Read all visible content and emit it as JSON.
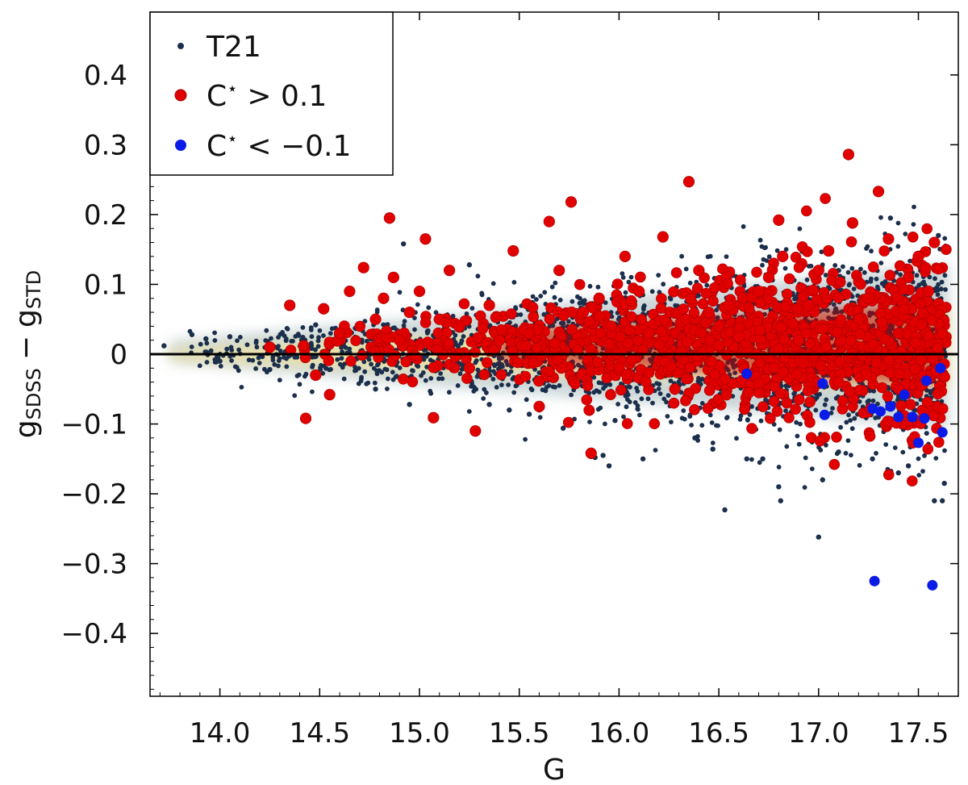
{
  "chart_data": {
    "type": "scatter",
    "title": "",
    "xlabel": "G",
    "ylabel": {
      "base": "g",
      "sub1": "SDSS",
      "minus": "−",
      "sub2": "STD"
    },
    "xlim": [
      13.65,
      17.7
    ],
    "ylim": [
      -0.49,
      0.49
    ],
    "xticks": [
      14.0,
      14.5,
      15.0,
      15.5,
      16.0,
      16.5,
      17.0,
      17.5
    ],
    "xtick_labels": [
      "14.0",
      "14.5",
      "15.0",
      "15.5",
      "16.0",
      "16.5",
      "17.0",
      "17.5"
    ],
    "yticks": [
      0.4,
      0.3,
      0.2,
      0.1,
      0.0,
      -0.1,
      -0.2,
      -0.3,
      -0.4
    ],
    "ytick_labels": [
      "0.4",
      "0.3",
      "0.2",
      "0.1",
      "0",
      "−0.1",
      "−0.2",
      "−0.3",
      "−0.4"
    ],
    "reference_line_y": 0,
    "legend": {
      "placement": "top-left",
      "entries": [
        {
          "key": "t21",
          "label": "T21"
        },
        {
          "key": "cpos",
          "label_prefix": "C",
          "label_sup": "⋆",
          "label_rest": " > 0.1"
        },
        {
          "key": "cneg",
          "label_prefix": "C",
          "label_sup": "⋆",
          "label_rest": " < −0.1"
        }
      ]
    },
    "colors": {
      "t21": "#1b2e4b",
      "density_core": "#efe3a0",
      "density_mid": "#9fb3b7",
      "cpos": "#e00000",
      "cpos_stroke": "#a80000",
      "cneg": "#0a1be8",
      "refline": "#000000"
    },
    "series": [
      {
        "name": "T21",
        "description": "dense band of points around zero, width growing with G",
        "x": [
          13.72,
          13.86,
          13.93,
          14.0,
          14.05,
          14.25,
          14.48,
          14.78,
          14.92,
          14.95,
          15.25,
          15.35,
          15.45,
          15.55,
          15.6,
          15.72,
          15.88,
          15.92,
          15.95,
          15.98,
          16.12,
          16.38,
          16.47,
          16.53,
          16.64,
          16.72,
          16.8,
          16.81,
          17.0,
          17.02,
          17.1,
          17.27,
          17.3,
          17.36,
          17.4,
          17.45,
          17.5,
          17.55,
          17.58,
          17.6,
          17.62,
          17.63
        ],
        "y": [
          0.012,
          0.028,
          0.022,
          -0.01,
          0.025,
          -0.022,
          0.042,
          -0.05,
          0.158,
          -0.072,
          0.128,
          -0.072,
          -0.08,
          -0.086,
          -0.08,
          -0.106,
          -0.148,
          -0.145,
          -0.16,
          -0.095,
          -0.15,
          -0.12,
          -0.136,
          -0.223,
          -0.15,
          -0.15,
          -0.19,
          -0.21,
          -0.262,
          -0.18,
          -0.14,
          -0.15,
          -0.09,
          0.195,
          -0.17,
          -0.16,
          0.13,
          0.15,
          -0.21,
          0.17,
          -0.21,
          -0.185
        ]
      },
      {
        "name": "C* > 0.1",
        "description": "red outliers scattered in the band",
        "x": [
          14.25,
          14.35,
          14.42,
          14.43,
          14.48,
          14.52,
          14.55,
          14.6,
          14.65,
          14.72,
          14.78,
          14.82,
          14.85,
          14.87,
          14.9,
          14.95,
          15.0,
          15.03,
          15.07,
          15.1,
          15.15,
          15.2,
          15.25,
          15.28,
          15.35,
          15.4,
          15.47,
          15.55,
          15.6,
          15.65,
          15.7,
          15.76,
          15.82,
          15.86,
          15.9,
          15.96,
          16.03,
          16.1,
          16.15,
          16.22,
          16.28,
          16.35,
          16.4,
          16.45,
          16.5,
          16.55,
          16.6,
          16.65,
          16.7,
          16.75,
          16.8,
          16.82,
          16.9,
          16.95,
          17.0,
          17.05,
          17.1,
          17.15,
          17.17,
          17.2,
          17.25,
          17.3,
          17.35,
          17.4,
          17.45,
          17.5,
          17.55,
          17.58,
          17.62
        ],
        "y": [
          0.01,
          0.07,
          0.012,
          -0.092,
          -0.03,
          0.065,
          -0.058,
          0.03,
          0.09,
          0.124,
          0.05,
          0.08,
          0.195,
          0.11,
          0.02,
          0.06,
          0.09,
          0.165,
          -0.091,
          0.05,
          0.12,
          0.04,
          -0.02,
          -0.11,
          0.07,
          0.02,
          0.148,
          0.03,
          -0.075,
          0.19,
          0.12,
          0.218,
          0.06,
          -0.142,
          0.08,
          0.04,
          0.14,
          0.09,
          0.03,
          0.168,
          -0.05,
          0.247,
          0.12,
          0.06,
          0.04,
          0.07,
          0.025,
          -0.055,
          0.09,
          0.11,
          0.192,
          0.14,
          0.02,
          0.07,
          0.12,
          0.148,
          -0.04,
          0.286,
          0.188,
          0.05,
          0.08,
          0.233,
          0.165,
          0.03,
          0.11,
          0.14,
          0.09,
          0.16,
          0.03
        ]
      },
      {
        "name": "C* < -0.1",
        "description": "blue outliers at the faint end",
        "x": [
          16.64,
          17.02,
          17.03,
          17.27,
          17.28,
          17.31,
          17.36,
          17.4,
          17.43,
          17.47,
          17.5,
          17.53,
          17.54,
          17.57,
          17.61,
          17.62
        ],
        "y": [
          -0.028,
          -0.042,
          -0.087,
          -0.078,
          -0.325,
          -0.082,
          -0.075,
          -0.09,
          -0.058,
          -0.09,
          -0.127,
          -0.092,
          -0.038,
          -0.331,
          -0.02,
          -0.112
        ]
      }
    ]
  }
}
